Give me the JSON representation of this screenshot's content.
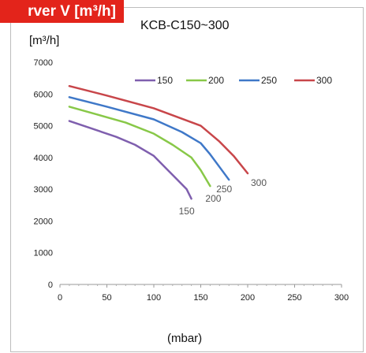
{
  "header": {
    "tag_label": "rver V [m³/h]",
    "model": "KCB-C150~300",
    "y_unit": "[m³/h]",
    "x_unit": "(mbar)"
  },
  "colors": {
    "tag_bg": "#e3241b",
    "series": [
      "#7f5fae",
      "#88c848",
      "#3f78c8",
      "#c8464a"
    ]
  },
  "chart_data": {
    "type": "line",
    "xlabel": "(mbar)",
    "ylabel": "[m³/h]",
    "xlim": [
      0,
      300
    ],
    "ylim": [
      0,
      7000
    ],
    "x_ticks": [
      0,
      50,
      100,
      150,
      200,
      250,
      300
    ],
    "y_ticks": [
      0,
      1000,
      2000,
      3000,
      4000,
      5000,
      6000,
      7000
    ],
    "grid": false,
    "legend_position": "top-right",
    "series": [
      {
        "name": "150",
        "end_label": "150",
        "x": [
          10,
          30,
          60,
          80,
          100,
          115,
          125,
          135,
          140
        ],
        "y": [
          5150,
          4950,
          4650,
          4400,
          4050,
          3600,
          3300,
          3000,
          2700
        ]
      },
      {
        "name": "200",
        "end_label": "200",
        "x": [
          10,
          40,
          70,
          100,
          120,
          140,
          150,
          160
        ],
        "y": [
          5600,
          5350,
          5100,
          4750,
          4400,
          4000,
          3600,
          3100
        ]
      },
      {
        "name": "250",
        "end_label": "250",
        "x": [
          10,
          50,
          100,
          130,
          150,
          160,
          170,
          180
        ],
        "y": [
          5900,
          5600,
          5200,
          4800,
          4450,
          4100,
          3700,
          3300
        ]
      },
      {
        "name": "300",
        "end_label": "300",
        "x": [
          10,
          50,
          100,
          150,
          170,
          185,
          200
        ],
        "y": [
          6250,
          5950,
          5550,
          5000,
          4500,
          4050,
          3500
        ]
      }
    ]
  }
}
